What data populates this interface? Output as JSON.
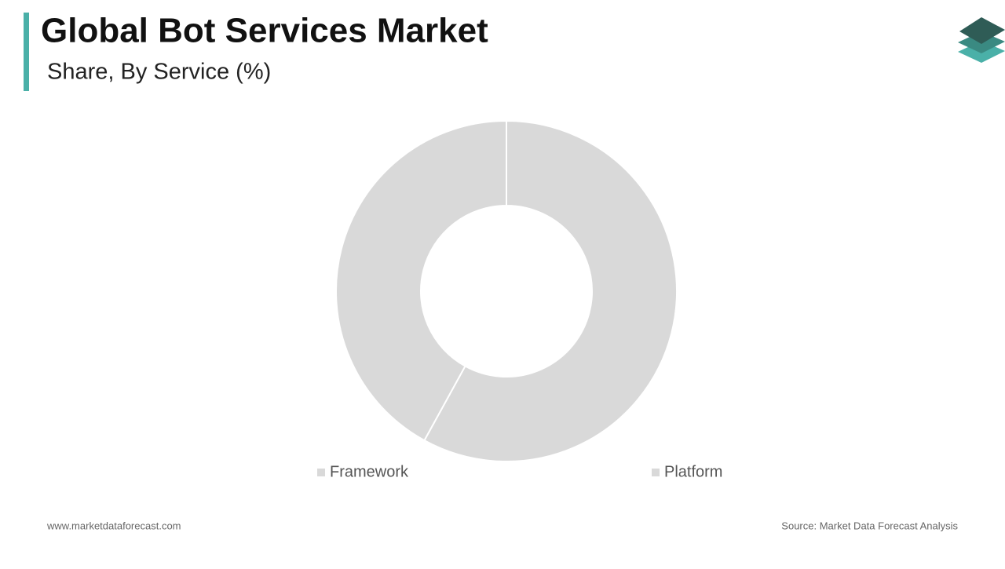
{
  "chart_data": {
    "type": "donut",
    "title": "Global Bot Services Market",
    "subtitle": "Share, By Service (%)",
    "categories": [
      "Framework",
      "Platform"
    ],
    "values": [
      58,
      42
    ],
    "colors": [
      "#d9d9d9",
      "#d9d9d9"
    ]
  },
  "footer": {
    "website": "www.marketdataforecast.com",
    "source": "Source: Market Data Forecast Analysis"
  }
}
